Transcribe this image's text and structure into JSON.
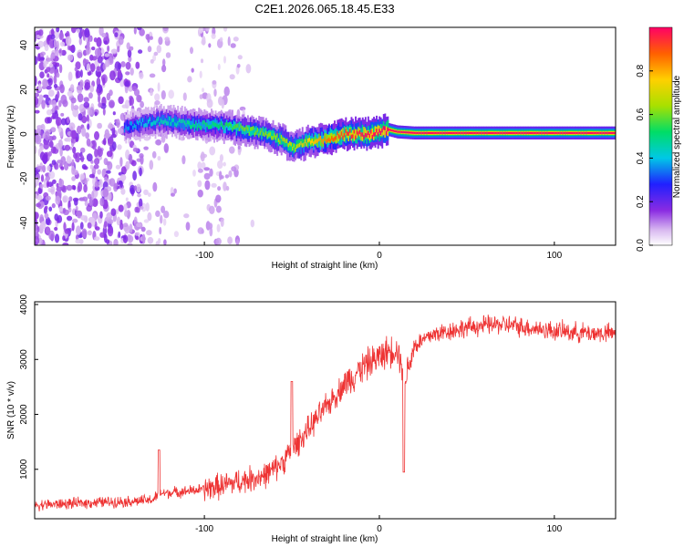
{
  "title": "C2E1.2026.065.18.45.E33",
  "chart_data": [
    {
      "type": "heatmap",
      "xlabel": "Height of straight line (km)",
      "ylabel": "Frequency (Hz)",
      "xlim": [
        -197,
        135
      ],
      "ylim": [
        -50,
        48
      ],
      "xticks": [
        -100,
        0,
        100
      ],
      "xtick_labels": [
        "-100",
        "0",
        "100"
      ],
      "yticks": [
        -40,
        -20,
        0,
        20,
        40
      ],
      "ytick_labels": [
        "-40",
        "-20",
        "0",
        "20",
        "40"
      ],
      "ridge": {
        "x": [
          -146,
          -135,
          -125,
          -115,
          -105,
          -95,
          -85,
          -78,
          -70,
          -62,
          -55,
          -50,
          -45,
          -40,
          -35,
          -30,
          -25,
          -20,
          -15,
          -10,
          -5,
          0,
          5,
          10,
          20,
          40,
          60,
          80,
          100,
          120,
          135
        ],
        "freq": [
          3,
          5,
          6,
          5,
          4,
          4,
          3,
          2,
          1,
          -1,
          -3,
          -6,
          -5,
          -3,
          -3,
          -2,
          -1,
          0,
          0,
          0,
          0,
          1,
          2,
          1,
          0.5,
          0.5,
          0.5,
          0.5,
          0.5,
          0.5,
          0.5
        ],
        "amplitude": [
          0.35,
          0.4,
          0.45,
          0.45,
          0.5,
          0.5,
          0.55,
          0.6,
          0.6,
          0.62,
          0.65,
          0.65,
          0.7,
          0.75,
          0.8,
          0.85,
          0.9,
          0.92,
          0.95,
          0.97,
          0.98,
          1.0,
          1.0,
          1.0,
          1.0,
          1.0,
          1.0,
          1.0,
          1.0,
          1.0,
          1.0
        ]
      },
      "colorbar": {
        "label": "Normalized spectral amplitude",
        "range": [
          0,
          1
        ],
        "ticks": [
          0.0,
          0.2,
          0.4,
          0.6,
          0.8
        ],
        "tick_labels": [
          "0.0",
          "0.2",
          "0.4",
          "0.6",
          "0.8"
        ]
      }
    },
    {
      "type": "line",
      "xlabel": "Height of straight line (km)",
      "ylabel": "SNR (10 * v/v)",
      "xlim": [
        -197,
        135
      ],
      "ylim": [
        100,
        4050
      ],
      "xticks": [
        -100,
        0,
        100
      ],
      "xtick_labels": [
        "-100",
        "0",
        "100"
      ],
      "yticks": [
        1000,
        2000,
        3000,
        4000
      ],
      "ytick_labels": [
        "1000",
        "2000",
        "3000",
        "4000"
      ],
      "series": [
        {
          "name": "SNR",
          "color": "#ee3333",
          "x": [
            -197,
            -180,
            -160,
            -140,
            -130,
            -125,
            -110,
            -100,
            -90,
            -80,
            -70,
            -65,
            -60,
            -55,
            -50,
            -45,
            -40,
            -35,
            -30,
            -25,
            -20,
            -15,
            -10,
            -5,
            0,
            5,
            10,
            15,
            20,
            25,
            30,
            40,
            50,
            60,
            70,
            80,
            90,
            100,
            110,
            120,
            135
          ],
          "y": [
            350,
            370,
            400,
            420,
            440,
            560,
            600,
            640,
            700,
            780,
            850,
            900,
            1000,
            1150,
            1350,
            1550,
            1750,
            1950,
            2150,
            2350,
            2550,
            2700,
            2850,
            2950,
            3050,
            3150,
            3200,
            2700,
            3250,
            3350,
            3450,
            3520,
            3580,
            3620,
            3640,
            3600,
            3560,
            3520,
            3500,
            3480,
            3470
          ]
        }
      ],
      "spikes": [
        {
          "x": -126,
          "y": 1350
        },
        {
          "x": -50,
          "y": 2600
        },
        {
          "x": 14,
          "y": 950
        }
      ]
    }
  ]
}
